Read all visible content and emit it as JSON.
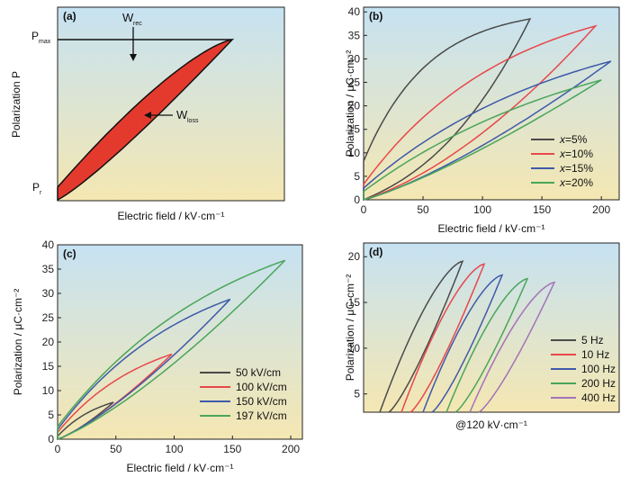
{
  "colors": {
    "grey": "#4a4a4a",
    "red": "#e8474b",
    "blue": "#3e5aa8",
    "green": "#4aa55a",
    "purple": "#a472b8",
    "bg_top": "#c6e2f2",
    "bg_bottom": "#f4e7b2",
    "fill_red": "#e43a2e"
  },
  "chart_data": [
    {
      "panel": "(a)",
      "type": "line",
      "xlabel": "Electric field / kV·cm⁻¹",
      "ylabel": "Polarization P",
      "annotations": {
        "pmax": "P",
        "pmax_sub": "max",
        "pr": "P",
        "pr_sub": "r",
        "wrec": "W",
        "wrec_sub": "rec",
        "wloss": "W",
        "wloss_sub": "loss"
      }
    },
    {
      "panel": "(b)",
      "type": "line",
      "xlabel": "Electric field / kV·cm⁻¹",
      "ylabel": "Polarization / μC·cm⁻²",
      "xlim": [
        0,
        215
      ],
      "ylim": [
        0,
        41
      ],
      "xticks": [
        0,
        50,
        100,
        150,
        200
      ],
      "yticks": [
        0,
        5,
        10,
        15,
        20,
        25,
        30,
        35,
        40
      ],
      "legend_position": "bottom-right",
      "series": [
        {
          "var": "x",
          "label": "=5%",
          "color": "#4a4a4a",
          "emax": 140,
          "pmax": 38.5,
          "pr": 8.2
        },
        {
          "var": "x",
          "label": "=10%",
          "color": "#e8474b",
          "emax": 195,
          "pmax": 37.0,
          "pr": 3.3
        },
        {
          "var": "x",
          "label": "=15%",
          "color": "#3e5aa8",
          "emax": 208,
          "pmax": 29.5,
          "pr": 2.5
        },
        {
          "var": "x",
          "label": "=20%",
          "color": "#4aa55a",
          "emax": 200,
          "pmax": 25.5,
          "pr": 1.8
        }
      ]
    },
    {
      "panel": "(c)",
      "type": "line",
      "xlabel": "Electric field / kV·cm⁻¹",
      "ylabel": "Polarization / μC·cm⁻²",
      "xlim": [
        0,
        210
      ],
      "ylim": [
        0,
        40
      ],
      "xticks": [
        0,
        50,
        100,
        150,
        200
      ],
      "yticks": [
        0,
        5,
        10,
        15,
        20,
        25,
        30,
        35,
        40
      ],
      "legend_position": "bottom-right",
      "series": [
        {
          "label": "50 kV/cm",
          "color": "#4a4a4a",
          "emax": 48,
          "pmax": 7.6,
          "pr": 0.6
        },
        {
          "label": "100 kV/cm",
          "color": "#e8474b",
          "emax": 98,
          "pmax": 17.5,
          "pr": 1.4
        },
        {
          "label": "150 kV/cm",
          "color": "#3e5aa8",
          "emax": 148,
          "pmax": 28.8,
          "pr": 2.0
        },
        {
          "label": "197 kV/cm",
          "color": "#4aa55a",
          "emax": 195,
          "pmax": 36.8,
          "pr": 2.6
        }
      ]
    },
    {
      "panel": "(d)",
      "type": "line",
      "xlabel": "@120 kV·cm⁻¹",
      "ylabel": "Polarization / μC·cm⁻²",
      "ylim": [
        3,
        21.5
      ],
      "yticks": [
        5,
        10,
        15,
        20
      ],
      "legend_position": "bottom-right",
      "series": [
        {
          "label": "5 Hz",
          "color": "#4a4a4a",
          "pmax": 19.5,
          "pmin": 3.0
        },
        {
          "label": "10 Hz",
          "color": "#e8474b",
          "pmax": 19.2,
          "pmin": 3.0
        },
        {
          "label": "100 Hz",
          "color": "#3e5aa8",
          "pmax": 18.0,
          "pmin": 3.0
        },
        {
          "label": "200 Hz",
          "color": "#4aa55a",
          "pmax": 17.6,
          "pmin": 3.0
        },
        {
          "label": "400 Hz",
          "color": "#a472b8",
          "pmax": 17.2,
          "pmin": 3.0
        }
      ]
    }
  ]
}
